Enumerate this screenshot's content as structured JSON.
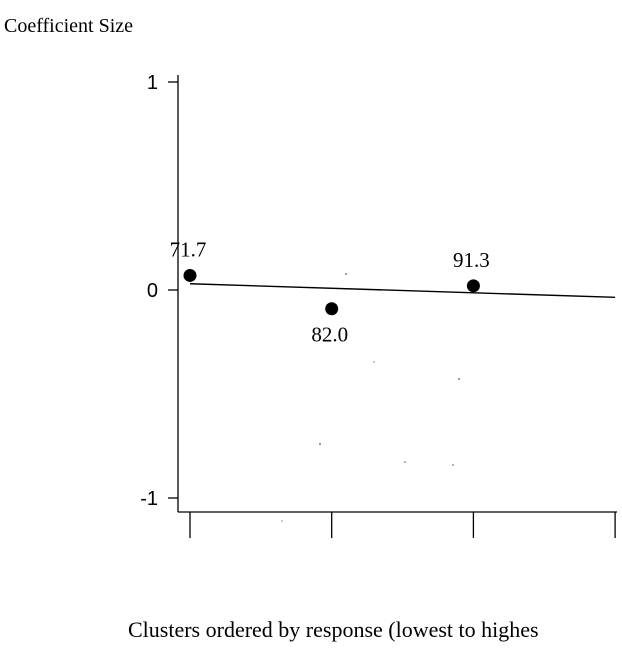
{
  "chart_data": {
    "type": "scatter",
    "ylabel": "Coefficient Size",
    "xlabel": "Clusters ordered by response (lowest to highes",
    "ylim": [
      -1,
      1
    ],
    "yticks": [
      {
        "value": 1,
        "label": "1"
      },
      {
        "value": 0,
        "label": "0"
      },
      {
        "value": -1,
        "label": "-1"
      }
    ],
    "xticks": [
      1,
      2,
      3,
      4
    ],
    "points": [
      {
        "x": 1,
        "y": 0.07,
        "label": "71.7"
      },
      {
        "x": 2,
        "y": -0.09,
        "label": "82.0"
      },
      {
        "x": 3,
        "y": 0.02,
        "label": "91.3"
      }
    ],
    "fit_line": {
      "x": [
        1,
        4
      ],
      "y": [
        0.03,
        -0.035
      ]
    },
    "grid": false,
    "legend": "none"
  }
}
